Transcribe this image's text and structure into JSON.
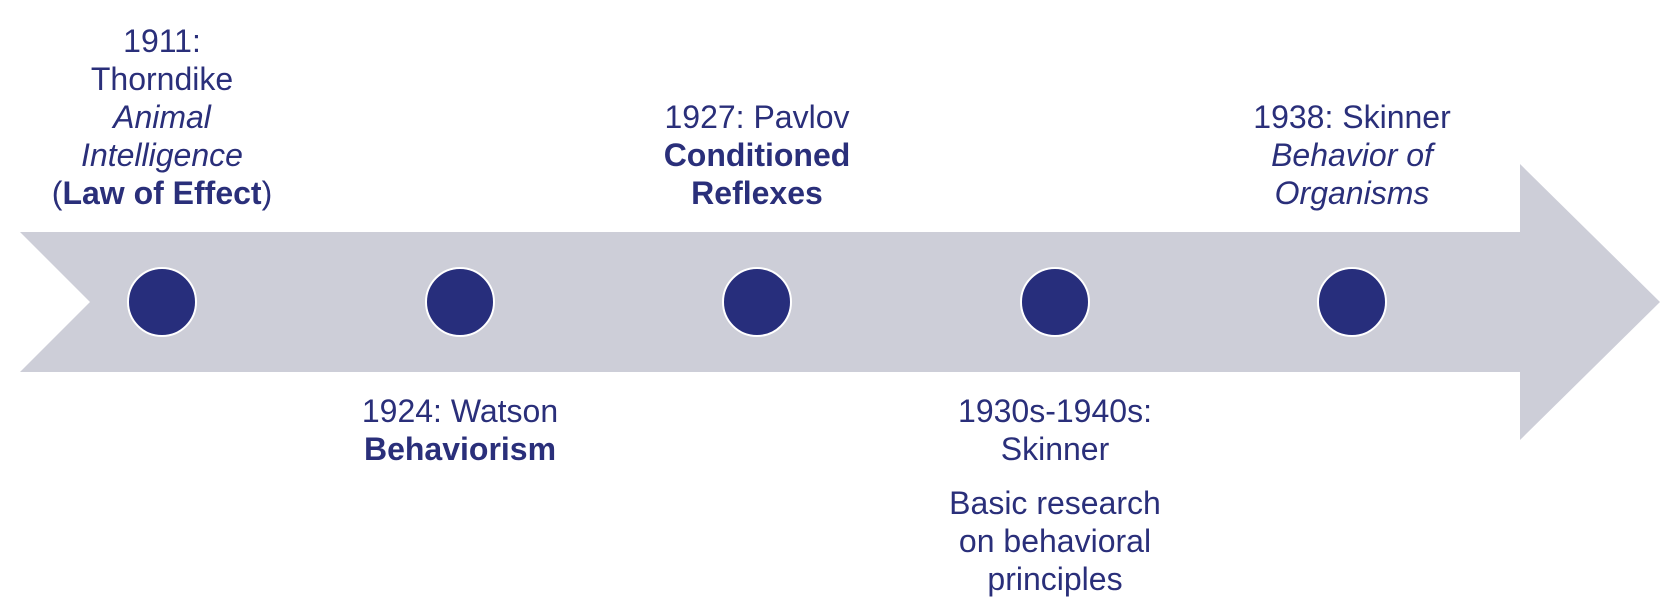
{
  "colors": {
    "arrow": "#cdced8",
    "dot": "#272e7c",
    "dot_stroke": "#ffffff",
    "text": "#2a2f7a"
  },
  "events": [
    {
      "year": "1911:",
      "name": "Thorndike",
      "work_line1": "Animal",
      "work_line2": "Intelligence",
      "paren_open": "(",
      "key_term": "Law of Effect",
      "paren_close": ")"
    },
    {
      "heading": "1924: Watson",
      "key_term": "Behaviorism"
    },
    {
      "heading": "1927: Pavlov",
      "key_term_line1": "Conditioned",
      "key_term_line2": "Reflexes"
    },
    {
      "heading_line1": "1930s-1940s:",
      "heading_line2": "Skinner",
      "desc_line1": "Basic research",
      "desc_line2": "on behavioral",
      "desc_line3": "principles"
    },
    {
      "heading": "1938: Skinner",
      "work_line1": "Behavior of",
      "work_line2": "Organisms"
    }
  ]
}
